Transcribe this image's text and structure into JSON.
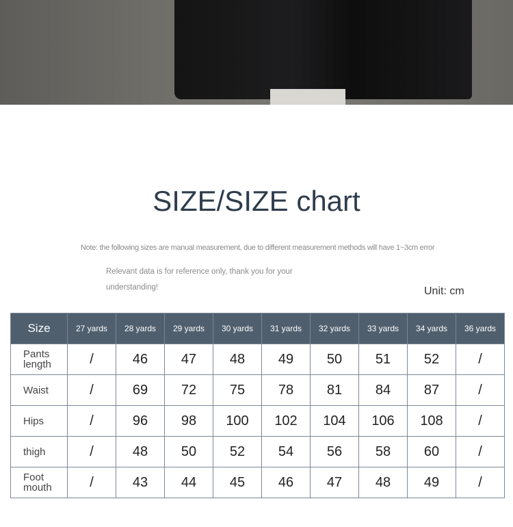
{
  "title": "SIZE/SIZE chart",
  "note": "Note: the following sizes are manual measurement, due to different measurement methods will have 1~3cm error",
  "note_line2": "Relevant data is for reference only, thank you for your",
  "note_line3": "understanding!",
  "unit": "Unit: cm",
  "table": {
    "headers": [
      "Size",
      "27 yards",
      "28 yards",
      "29 yards",
      "30 yards",
      "31 yards",
      "32 yards",
      "33 yards",
      "34 yards",
      "36 yards"
    ],
    "rows": [
      {
        "label": "Pants length",
        "values": [
          "/",
          "46",
          "47",
          "48",
          "49",
          "50",
          "51",
          "52",
          "/"
        ]
      },
      {
        "label": "Waist",
        "values": [
          "/",
          "69",
          "72",
          "75",
          "78",
          "81",
          "84",
          "87",
          "/"
        ]
      },
      {
        "label": "Hips",
        "values": [
          "/",
          "96",
          "98",
          "100",
          "102",
          "104",
          "106",
          "108",
          "/"
        ]
      },
      {
        "label": "thigh",
        "values": [
          "/",
          "48",
          "50",
          "52",
          "54",
          "56",
          "58",
          "60",
          "/"
        ]
      },
      {
        "label": "Foot mouth",
        "values": [
          "/",
          "43",
          "44",
          "45",
          "46",
          "47",
          "48",
          "49",
          "/"
        ]
      }
    ]
  },
  "colors": {
    "header_bg": "#4f5f6e",
    "title": "#2e3d4c"
  }
}
